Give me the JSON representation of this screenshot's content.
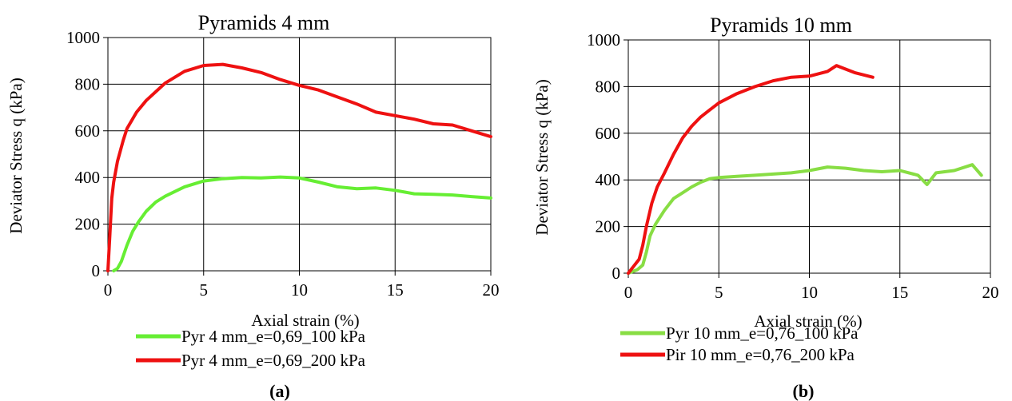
{
  "colors": {
    "grid": "#000000",
    "text": "#000000"
  },
  "chart_data": [
    {
      "type": "line",
      "title": "Pyramids 4 mm",
      "xlabel": "Axial strain (%)",
      "ylabel": "Deviator Stress q (kPa)",
      "xlim": [
        0,
        20
      ],
      "ylim": [
        0,
        1000
      ],
      "xticks": [
        "0",
        "5",
        "10",
        "15",
        "20"
      ],
      "yticks": [
        "0",
        "200",
        "400",
        "600",
        "800",
        "1000"
      ],
      "grid": true,
      "legend_position": "bottom",
      "caption": "(a)",
      "series": [
        {
          "name": "Pyr 4 mm_e=0,69_100 kPa",
          "color": "#66ee33",
          "x": [
            0.3,
            0.5,
            0.7,
            1.0,
            1.3,
            1.6,
            2.0,
            2.5,
            3.0,
            4.0,
            5.0,
            6.0,
            7.0,
            8.0,
            9.0,
            10.0,
            11.0,
            12.0,
            13.0,
            14.0,
            15.0,
            16.0,
            17.0,
            18.0,
            19.0,
            20.0
          ],
          "y": [
            0,
            10,
            40,
            110,
            170,
            210,
            255,
            295,
            320,
            360,
            385,
            395,
            400,
            398,
            402,
            398,
            380,
            360,
            352,
            355,
            345,
            330,
            328,
            325,
            318,
            312
          ]
        },
        {
          "name": "Pyr 4 mm_e=0,69_200 kPa",
          "color": "#ee1111",
          "x": [
            0.0,
            0.1,
            0.2,
            0.3,
            0.5,
            0.8,
            1.0,
            1.5,
            2.0,
            3.0,
            4.0,
            5.0,
            6.0,
            7.0,
            8.0,
            9.0,
            10.0,
            11.0,
            12.0,
            13.0,
            14.0,
            15.0,
            16.0,
            17.0,
            18.0,
            19.0,
            20.0
          ],
          "y": [
            0,
            150,
            310,
            380,
            470,
            560,
            610,
            680,
            730,
            805,
            855,
            880,
            885,
            870,
            850,
            820,
            795,
            775,
            745,
            715,
            680,
            665,
            650,
            630,
            625,
            600,
            575
          ]
        }
      ]
    },
    {
      "type": "line",
      "title": "Pyramids 10 mm",
      "xlabel": "Axial strain (%)",
      "ylabel": "Deviator Stress q (kPa)",
      "xlim": [
        0,
        20
      ],
      "ylim": [
        0,
        1000
      ],
      "xticks": [
        "0",
        "5",
        "10",
        "15",
        "20"
      ],
      "yticks": [
        "0",
        "200",
        "400",
        "600",
        "800",
        "1000"
      ],
      "grid": true,
      "legend_position": "bottom",
      "caption": "(b)",
      "series": [
        {
          "name": "Pyr 10 mm_e=0,76_100 kPa",
          "color": "#88dd44",
          "x": [
            0.0,
            0.5,
            0.8,
            1.0,
            1.2,
            1.5,
            2.0,
            2.5,
            3.0,
            3.5,
            4.0,
            4.5,
            5.0,
            6.0,
            7.0,
            8.0,
            9.0,
            10.0,
            11.0,
            12.0,
            13.0,
            14.0,
            15.0,
            16.0,
            16.5,
            17.0,
            18.0,
            19.0,
            19.5
          ],
          "y": [
            0,
            15,
            35,
            90,
            160,
            210,
            270,
            320,
            345,
            370,
            390,
            405,
            410,
            415,
            420,
            425,
            430,
            440,
            455,
            450,
            440,
            435,
            440,
            420,
            380,
            430,
            440,
            465,
            420
          ]
        },
        {
          "name": "Pir 10 mm_e=0,76_200 kPa",
          "color": "#ee1111",
          "x": [
            0.0,
            0.3,
            0.6,
            0.8,
            1.0,
            1.3,
            1.6,
            2.0,
            2.5,
            3.0,
            3.5,
            4.0,
            4.5,
            5.0,
            6.0,
            7.0,
            8.0,
            9.0,
            10.0,
            11.0,
            11.5,
            12.0,
            12.5,
            13.0,
            13.5
          ],
          "y": [
            0,
            30,
            60,
            120,
            200,
            300,
            370,
            430,
            510,
            580,
            630,
            670,
            700,
            730,
            770,
            800,
            825,
            840,
            845,
            865,
            890,
            875,
            860,
            850,
            840
          ]
        }
      ]
    }
  ]
}
